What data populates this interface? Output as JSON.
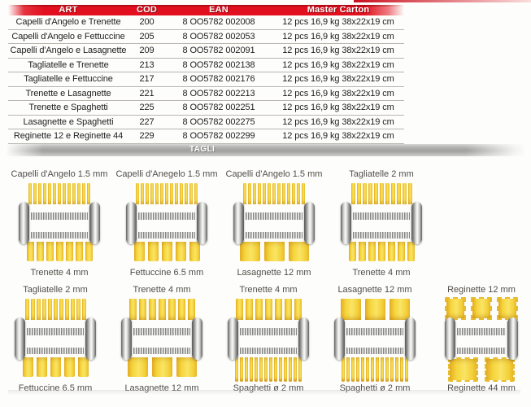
{
  "table": {
    "headers": [
      "ART",
      "COD",
      "EAN",
      "Master Carton"
    ],
    "rows": [
      {
        "art": "Capelli d'Angelo e Trenette",
        "cod": "200",
        "ean": "8 OO5782 002008",
        "carton": "12 pcs 16,9 kg 38x22x19 cm"
      },
      {
        "art": "Capelli d'Angelo e Fettuccine",
        "cod": "205",
        "ean": "8 OO5782 002053",
        "carton": "12 pcs 16,9 kg 38x22x19 cm"
      },
      {
        "art": "Capelli d'Angelo e Lasagnette",
        "cod": "209",
        "ean": "8 OO5782 002091",
        "carton": "12 pcs 16,9 kg 38x22x19 cm"
      },
      {
        "art": "Tagliatelle e Trenette",
        "cod": "213",
        "ean": "8 OO5782 002138",
        "carton": "12 pcs 16,9 kg 38x22x19 cm"
      },
      {
        "art": "Tagliatelle e Fettuccine",
        "cod": "217",
        "ean": "8 OO5782 002176",
        "carton": "12 pcs 16,9 kg 38x22x19 cm"
      },
      {
        "art": "Trenette e Lasagnette",
        "cod": "221",
        "ean": "8 OO5782 002213",
        "carton": "12 pcs 16,9 kg 38x22x19 cm"
      },
      {
        "art": "Trenette e Spaghetti",
        "cod": "225",
        "ean": "8 OO5782 002251",
        "carton": "12 pcs 16,9 kg 38x22x19 cm"
      },
      {
        "art": "Lasagnette e Spaghetti",
        "cod": "227",
        "ean": "8 OO5782 002275",
        "carton": "12 pcs 16,9 kg 38x22x19 cm"
      },
      {
        "art": "Reginette 12 e Reginette 44",
        "cod": "229",
        "ean": "8 OO5782 002299",
        "carton": "12 pcs 16,9 kg 38x22x19 cm"
      }
    ]
  },
  "tagli_bar": {
    "label": "TAGLI"
  },
  "machine_rows": [
    [
      {
        "top_label": "Capelli d'Angelo 1.5 mm",
        "bottom_label": "Trenette 4 mm",
        "top_cut": "capelli",
        "bottom_cut": "trenette"
      },
      {
        "top_label": "Capelli d'Anegelo 1.5 mm",
        "bottom_label": "Fettuccine 6.5 mm",
        "top_cut": "capelli",
        "bottom_cut": "fettuccine"
      },
      {
        "top_label": "Capelli d'Angelo 1.5 mm",
        "bottom_label": "Lasagnette 12 mm",
        "top_cut": "capelli",
        "bottom_cut": "lasagnette"
      },
      {
        "top_label": "Tagliatelle 2 mm",
        "bottom_label": "Trenette 4 mm",
        "top_cut": "tagliatelle",
        "bottom_cut": "trenette"
      }
    ],
    [
      {
        "top_label": "Tagliatelle 2 mm",
        "bottom_label": "Fettuccine 6.5 mm",
        "top_cut": "tagliatelle",
        "bottom_cut": "fettuccine"
      },
      {
        "top_label": "Trenette 4 mm",
        "bottom_label": "Lasagnette 12 mm",
        "top_cut": "trenette",
        "bottom_cut": "lasagnette"
      },
      {
        "top_label": "Trenette 4 mm",
        "bottom_label": "Spaghetti ø 2 mm",
        "top_cut": "trenette",
        "bottom_cut": "spaghetti"
      },
      {
        "top_label": "Lasagnette 12 mm",
        "bottom_label": "Spaghetti ø 2 mm",
        "top_cut": "lasagnette",
        "bottom_cut": "spaghetti"
      },
      {
        "top_label": "Reginette 12 mm",
        "bottom_label": "Reginette 44 mm",
        "top_cut": "reginette12",
        "bottom_cut": "reginette44"
      }
    ]
  ],
  "colors": {
    "header_red": "#e2101e",
    "tagli_gray": "#a8a8a6",
    "pasta_yellow": "#f6d53d",
    "chrome_gray": "#c8c8c6"
  }
}
